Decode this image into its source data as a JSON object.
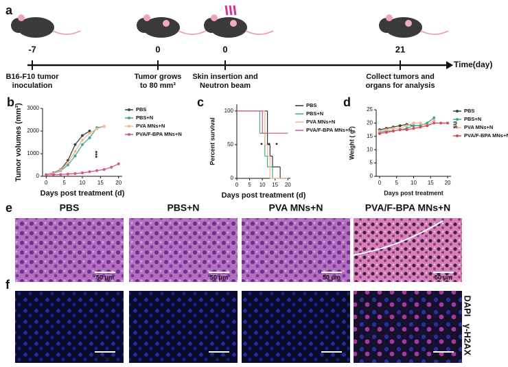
{
  "timeline": {
    "panel": "a",
    "points": [
      {
        "time": "-7",
        "caption": [
          "B16-F10 tumor",
          "inoculation"
        ]
      },
      {
        "time": "0",
        "caption": [
          "Tumor grows",
          "to 80 mm³"
        ]
      },
      {
        "time": "0",
        "caption": [
          "Skin insertion and",
          "Neutron beam"
        ]
      },
      {
        "time": "21",
        "caption": [
          "Collect tumors and",
          "organs for analysis"
        ]
      }
    ],
    "axis_label": "Time(day)"
  },
  "chart_data": [
    {
      "type": "line",
      "panel": "b",
      "xlabel": "Days post treatment (d)",
      "ylabel": "Tumor volumes (mm³)",
      "x": [
        0,
        2,
        4,
        6,
        8,
        10,
        12,
        14,
        16,
        18,
        20
      ],
      "series": [
        {
          "name": "PBS",
          "color": "#2f4a3c",
          "values": [
            80,
            150,
            300,
            700,
            1400,
            1800,
            2000,
            null,
            null,
            null,
            null
          ]
        },
        {
          "name": "PBS+N",
          "color": "#3aaa8c",
          "values": [
            80,
            120,
            250,
            500,
            900,
            1400,
            1700,
            2150,
            2200,
            null,
            null
          ]
        },
        {
          "name": "PVA MNs+N",
          "color": "#f2b48f",
          "values": [
            80,
            130,
            280,
            600,
            1100,
            1600,
            1900,
            2100,
            2200,
            null,
            null
          ]
        },
        {
          "name": "PVA/F-BPA MNs+N",
          "color": "#d6538f",
          "values": [
            60,
            70,
            80,
            100,
            120,
            150,
            200,
            250,
            300,
            400,
            550
          ]
        }
      ],
      "xlim": [
        -1,
        21
      ],
      "xticks": [
        0,
        5,
        10,
        15,
        20
      ],
      "ylim": [
        0,
        3000
      ],
      "yticks": [
        0,
        1000,
        2000,
        3000
      ],
      "annotations": [
        "***"
      ]
    },
    {
      "type": "step",
      "panel": "c",
      "xlabel": "Days post treatment (d)",
      "ylabel": "Percent survival",
      "x": [
        0,
        9,
        10,
        11,
        12,
        13,
        14,
        16,
        17,
        20
      ],
      "series": [
        {
          "name": "PBS",
          "color": "#333333",
          "values": [
            100,
            100,
            100,
            100,
            50,
            33,
            17,
            17,
            0,
            0
          ]
        },
        {
          "name": "PBS+N",
          "color": "#3aaa8c",
          "values": [
            100,
            67,
            67,
            33,
            17,
            17,
            0,
            0,
            0,
            0
          ]
        },
        {
          "name": "PVA MNs+N",
          "color": "#f2b48f",
          "values": [
            100,
            100,
            100,
            50,
            33,
            0,
            0,
            0,
            0,
            0
          ]
        },
        {
          "name": "PVA/F-BPA MNs+N",
          "color": "#d6538f",
          "values": [
            100,
            100,
            67,
            67,
            67,
            67,
            67,
            67,
            67,
            67
          ]
        }
      ],
      "xlim": [
        0,
        21
      ],
      "xticks": [
        0,
        5,
        10,
        15,
        20
      ],
      "ylim": [
        0,
        110
      ],
      "yticks": [
        0,
        50,
        100
      ],
      "annotations": [
        "*",
        "*",
        "*"
      ]
    },
    {
      "type": "line",
      "panel": "d",
      "xlabel": "Days post treatment",
      "ylabel": "Weight ( g )",
      "x": [
        0,
        2,
        4,
        6,
        8,
        10,
        12,
        14,
        16,
        18,
        20
      ],
      "series": [
        {
          "name": "PBS",
          "color": "#2f4a3c",
          "values": [
            17.5,
            18,
            18.5,
            19,
            19.5,
            19,
            19,
            null,
            null,
            null,
            null
          ]
        },
        {
          "name": "PBS+N",
          "color": "#3aaa8c",
          "values": [
            16.5,
            17,
            17,
            17.5,
            18,
            19,
            19,
            20,
            22,
            null,
            null
          ]
        },
        {
          "name": "PVA MNs+N",
          "color": "#f2b48f",
          "values": [
            17,
            17.5,
            18,
            18,
            19,
            20,
            20,
            19,
            21,
            null,
            null
          ]
        },
        {
          "name": "PVA/F-BPA MNs+N",
          "color": "#d84a5a",
          "values": [
            16,
            16.5,
            17,
            17.5,
            17.5,
            18,
            18.5,
            19,
            20,
            20,
            20
          ]
        }
      ],
      "xlim": [
        -1,
        21
      ],
      "xticks": [
        0,
        5,
        10,
        15,
        20
      ],
      "ylim": [
        0,
        25
      ],
      "yticks": [
        0,
        5,
        10,
        15,
        20,
        25
      ],
      "annotations": [
        "ns"
      ]
    }
  ],
  "histology": {
    "panel": "e",
    "titles": [
      "PBS",
      "PBS+N",
      "PVA MNs+N",
      "PVA/F-BPA MNs+N"
    ],
    "scale_bar": "50 μm"
  },
  "fluorescence": {
    "panel": "f",
    "scale_bar": "50 μm",
    "channels": [
      "DAPI",
      "γ-H2AX"
    ]
  }
}
